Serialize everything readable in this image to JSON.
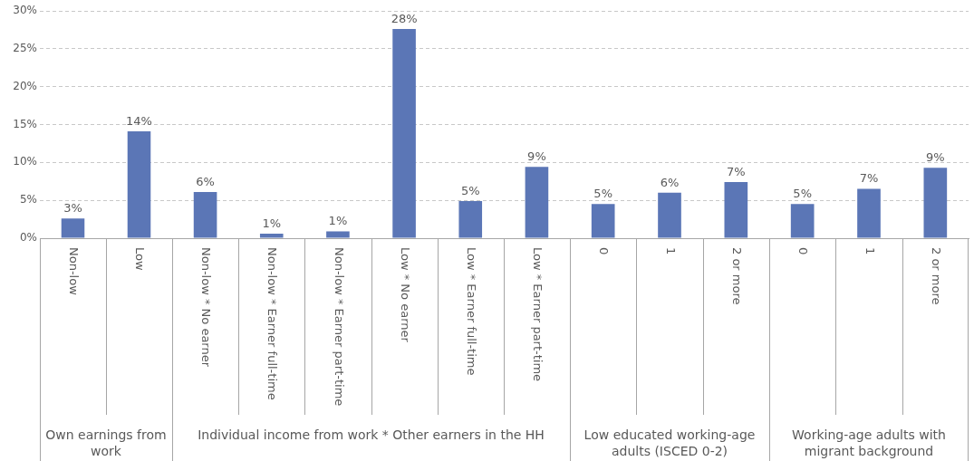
{
  "chart_data": [
    {
      "type": "bar",
      "xlabel": "Own earnings from work",
      "categories": [
        "Non-low",
        "Low"
      ],
      "values": [
        2.6,
        14.1
      ],
      "value_labels": [
        "3%",
        "14%"
      ],
      "color": "#5b76b6",
      "ylim": [
        0,
        30
      ],
      "yticks": [
        {
          "value": 0,
          "label": "0%"
        },
        {
          "value": 5,
          "label": "5%"
        },
        {
          "value": 10,
          "label": "10%"
        },
        {
          "value": 15,
          "label": "15%"
        },
        {
          "value": 20,
          "label": "20%"
        },
        {
          "value": 25,
          "label": "25%"
        },
        {
          "value": 30,
          "label": "30%"
        }
      ],
      "grid": "y",
      "legend": false
    },
    {
      "type": "bar",
      "xlabel": "Individual income from work * Other earners in the HH",
      "categories": [
        "Non-low * No earner",
        "Non-low * Earner full-time",
        "Non-low * Earner part-time",
        "Low * No earner",
        "Low * Earner full-time",
        "Low * Earner part-time"
      ],
      "values": [
        6.1,
        0.6,
        0.9,
        27.6,
        4.9,
        9.4
      ],
      "value_labels": [
        "6%",
        "1%",
        "1%",
        "28%",
        "5%",
        "9%"
      ],
      "color": "#5b76b6",
      "ylim": [
        0,
        30
      ],
      "yticks": [
        0,
        5,
        10,
        15,
        20,
        25,
        30
      ],
      "grid": "y",
      "legend": false,
      "tick_labels": "x"
    },
    {
      "type": "bar",
      "xlabel": "Low educated working-age adults (ISCED 0-2)",
      "categories": [
        "0",
        "1",
        "2 or more"
      ],
      "values": [
        4.5,
        6.0,
        7.4
      ],
      "value_labels": [
        "5%",
        "6%",
        "7%"
      ],
      "color": "#5b76b6",
      "ylim": [
        0,
        30
      ],
      "yticks": [
        0,
        5,
        10,
        15,
        20,
        25,
        30
      ],
      "grid": "y",
      "legend": false,
      "tick_labels": "x"
    },
    {
      "type": "bar",
      "xlabel": "Working-age adults with migrant background",
      "categories": [
        "0",
        "1",
        "2 or more"
      ],
      "values": [
        4.5,
        6.5,
        9.3
      ],
      "value_labels": [
        "5%",
        "7%",
        "9%"
      ],
      "color": "#5b76b6",
      "ylim": [
        0,
        30
      ],
      "yticks": [
        0,
        5,
        10,
        15,
        20,
        25,
        30
      ],
      "grid": "y",
      "legend": false,
      "tick_labels": "x"
    }
  ]
}
